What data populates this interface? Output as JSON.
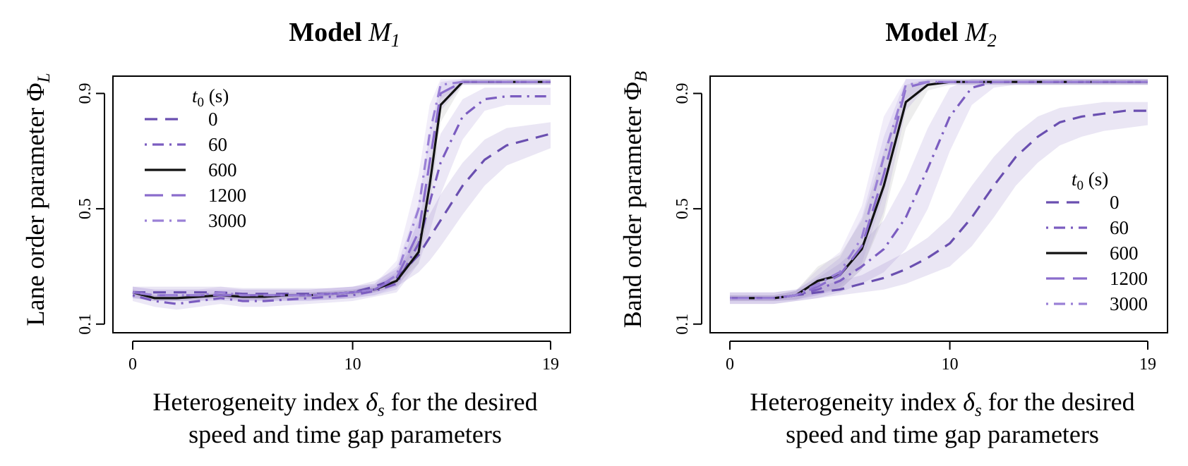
{
  "chart_data": [
    {
      "type": "line",
      "title": {
        "text": "Model ",
        "model": "M",
        "sub": "1"
      },
      "xlabel": {
        "line1_pre": "Heterogeneity index ",
        "delta": "δ",
        "delta_sub": "s",
        "line1_post": " for the desired",
        "line2": "speed and time gap parameters"
      },
      "ylabel": {
        "text": "Lane order parameter ",
        "phi": "Φ",
        "phi_sub": "L"
      },
      "xlim": [
        0,
        19
      ],
      "ylim": [
        0.07,
        0.96
      ],
      "x_ticks": [
        0,
        10,
        19
      ],
      "y_ticks": [
        0.1,
        0.5,
        0.9
      ],
      "grid": false,
      "legend": {
        "placement": "top-left",
        "title_var": "t",
        "title_sub": "0",
        "title_unit": " (s)"
      },
      "x": [
        0,
        1,
        2,
        3,
        4,
        5,
        6,
        7,
        8,
        9,
        10,
        11,
        12,
        13,
        13.5,
        14,
        15,
        16,
        17,
        18,
        19
      ],
      "series": [
        {
          "name": "0",
          "color": "#6a4fb0",
          "dash": "dashed",
          "values": [
            0.21,
            0.21,
            0.21,
            0.21,
            0.21,
            0.205,
            0.205,
            0.205,
            0.205,
            0.205,
            0.21,
            0.23,
            0.26,
            0.34,
            0.4,
            0.46,
            0.58,
            0.67,
            0.72,
            0.74,
            0.76
          ],
          "band_lo": [
            0.19,
            0.19,
            0.19,
            0.19,
            0.19,
            0.185,
            0.185,
            0.185,
            0.185,
            0.185,
            0.19,
            0.21,
            0.23,
            0.28,
            0.32,
            0.37,
            0.48,
            0.58,
            0.65,
            0.68,
            0.71
          ],
          "band_hi": [
            0.23,
            0.23,
            0.23,
            0.23,
            0.23,
            0.225,
            0.225,
            0.225,
            0.225,
            0.225,
            0.23,
            0.25,
            0.29,
            0.4,
            0.48,
            0.55,
            0.66,
            0.74,
            0.78,
            0.79,
            0.8
          ]
        },
        {
          "name": "60",
          "color": "#7b5cc0",
          "dash": "dotdash",
          "values": [
            0.2,
            0.18,
            0.17,
            0.18,
            0.19,
            0.18,
            0.18,
            0.185,
            0.19,
            0.195,
            0.2,
            0.215,
            0.24,
            0.38,
            0.52,
            0.66,
            0.82,
            0.88,
            0.89,
            0.89,
            0.89
          ],
          "band_lo": [
            0.18,
            0.16,
            0.15,
            0.16,
            0.17,
            0.16,
            0.16,
            0.165,
            0.17,
            0.175,
            0.18,
            0.195,
            0.21,
            0.31,
            0.42,
            0.55,
            0.74,
            0.84,
            0.86,
            0.86,
            0.86
          ],
          "band_hi": [
            0.22,
            0.2,
            0.19,
            0.2,
            0.21,
            0.2,
            0.2,
            0.205,
            0.21,
            0.215,
            0.22,
            0.235,
            0.28,
            0.46,
            0.62,
            0.76,
            0.88,
            0.92,
            0.92,
            0.92,
            0.92
          ]
        },
        {
          "name": "600",
          "color": "#111111",
          "dash": "solid",
          "values": [
            0.21,
            0.19,
            0.19,
            0.195,
            0.2,
            0.195,
            0.195,
            0.2,
            0.2,
            0.205,
            0.21,
            0.22,
            0.25,
            0.35,
            0.58,
            0.86,
            0.94,
            0.94,
            0.94,
            0.94,
            0.94
          ],
          "band_lo": [
            0.2,
            0.18,
            0.18,
            0.185,
            0.19,
            0.185,
            0.185,
            0.19,
            0.19,
            0.195,
            0.2,
            0.21,
            0.235,
            0.31,
            0.5,
            0.8,
            0.93,
            0.93,
            0.93,
            0.93,
            0.93
          ],
          "band_hi": [
            0.22,
            0.2,
            0.2,
            0.205,
            0.21,
            0.205,
            0.205,
            0.21,
            0.21,
            0.215,
            0.22,
            0.23,
            0.27,
            0.4,
            0.66,
            0.9,
            0.95,
            0.95,
            0.95,
            0.95,
            0.95
          ]
        },
        {
          "name": "1200",
          "color": "#8a6ccc",
          "dash": "longdash",
          "values": [
            0.21,
            0.2,
            0.2,
            0.2,
            0.2,
            0.2,
            0.2,
            0.2,
            0.2,
            0.205,
            0.21,
            0.22,
            0.26,
            0.42,
            0.66,
            0.9,
            0.94,
            0.94,
            0.94,
            0.94,
            0.94
          ],
          "band_lo": [
            0.19,
            0.18,
            0.18,
            0.18,
            0.18,
            0.18,
            0.18,
            0.18,
            0.18,
            0.185,
            0.19,
            0.2,
            0.22,
            0.34,
            0.56,
            0.84,
            0.93,
            0.93,
            0.93,
            0.93,
            0.93
          ],
          "band_hi": [
            0.23,
            0.22,
            0.22,
            0.22,
            0.22,
            0.22,
            0.22,
            0.22,
            0.22,
            0.225,
            0.23,
            0.24,
            0.3,
            0.52,
            0.76,
            0.94,
            0.95,
            0.95,
            0.95,
            0.95,
            0.95
          ]
        },
        {
          "name": "3000",
          "color": "#9a80d6",
          "dash": "dotdash",
          "values": [
            0.21,
            0.2,
            0.2,
            0.2,
            0.21,
            0.2,
            0.2,
            0.2,
            0.2,
            0.205,
            0.21,
            0.22,
            0.27,
            0.5,
            0.76,
            0.93,
            0.94,
            0.94,
            0.94,
            0.94,
            0.94
          ],
          "band_lo": [
            0.19,
            0.18,
            0.18,
            0.18,
            0.19,
            0.18,
            0.18,
            0.18,
            0.18,
            0.185,
            0.19,
            0.2,
            0.23,
            0.4,
            0.66,
            0.88,
            0.93,
            0.93,
            0.93,
            0.93,
            0.93
          ],
          "band_hi": [
            0.23,
            0.22,
            0.22,
            0.22,
            0.23,
            0.22,
            0.22,
            0.22,
            0.22,
            0.225,
            0.23,
            0.24,
            0.32,
            0.62,
            0.86,
            0.95,
            0.95,
            0.95,
            0.95,
            0.95,
            0.95
          ]
        }
      ]
    },
    {
      "type": "line",
      "title": {
        "text": "Model ",
        "model": "M",
        "sub": "2"
      },
      "xlabel": {
        "line1_pre": "Heterogeneity index ",
        "delta": "δ",
        "delta_sub": "s",
        "line1_post": " for the desired",
        "line2": "speed and time gap parameters"
      },
      "ylabel": {
        "text": "Band order parameter ",
        "phi": "Φ",
        "phi_sub": "B"
      },
      "xlim": [
        0,
        19
      ],
      "ylim": [
        0.07,
        0.96
      ],
      "x_ticks": [
        0,
        10,
        19
      ],
      "y_ticks": [
        0.1,
        0.5,
        0.9
      ],
      "grid": false,
      "legend": {
        "placement": "right",
        "title_var": "t",
        "title_sub": "0",
        "title_unit": " (s)"
      },
      "x": [
        0,
        1,
        2,
        3,
        4,
        5,
        6,
        7,
        8,
        9,
        10,
        11,
        12,
        13,
        14,
        15,
        16,
        17,
        18,
        19
      ],
      "series": [
        {
          "name": "0",
          "color": "#6a4fb0",
          "dash": "dashed",
          "values": [
            0.19,
            0.19,
            0.19,
            0.2,
            0.21,
            0.22,
            0.24,
            0.26,
            0.29,
            0.33,
            0.38,
            0.47,
            0.58,
            0.68,
            0.75,
            0.8,
            0.82,
            0.83,
            0.84,
            0.84
          ],
          "band_lo": [
            0.17,
            0.17,
            0.17,
            0.18,
            0.19,
            0.2,
            0.21,
            0.22,
            0.24,
            0.27,
            0.3,
            0.37,
            0.47,
            0.58,
            0.66,
            0.72,
            0.75,
            0.77,
            0.78,
            0.79
          ],
          "band_hi": [
            0.21,
            0.21,
            0.21,
            0.22,
            0.23,
            0.25,
            0.27,
            0.31,
            0.35,
            0.4,
            0.47,
            0.58,
            0.68,
            0.76,
            0.82,
            0.85,
            0.86,
            0.87,
            0.87,
            0.87
          ]
        },
        {
          "name": "60",
          "color": "#7b5cc0",
          "dash": "dotdash",
          "values": [
            0.19,
            0.19,
            0.19,
            0.2,
            0.22,
            0.25,
            0.3,
            0.36,
            0.47,
            0.64,
            0.82,
            0.92,
            0.94,
            0.94,
            0.94,
            0.94,
            0.94,
            0.94,
            0.94,
            0.94
          ],
          "band_lo": [
            0.17,
            0.17,
            0.17,
            0.18,
            0.19,
            0.21,
            0.24,
            0.28,
            0.36,
            0.5,
            0.7,
            0.86,
            0.92,
            0.93,
            0.93,
            0.93,
            0.93,
            0.93,
            0.93,
            0.93
          ],
          "band_hi": [
            0.21,
            0.21,
            0.21,
            0.22,
            0.26,
            0.31,
            0.38,
            0.46,
            0.6,
            0.78,
            0.92,
            0.95,
            0.95,
            0.95,
            0.95,
            0.95,
            0.95,
            0.95,
            0.95,
            0.95
          ]
        },
        {
          "name": "600",
          "color": "#111111",
          "dash": "solid",
          "values": [
            0.19,
            0.19,
            0.19,
            0.2,
            0.25,
            0.27,
            0.36,
            0.58,
            0.87,
            0.93,
            0.94,
            0.94,
            0.94,
            0.94,
            0.94,
            0.94,
            0.94,
            0.94,
            0.94,
            0.94
          ],
          "band_lo": [
            0.18,
            0.18,
            0.18,
            0.185,
            0.21,
            0.22,
            0.29,
            0.47,
            0.78,
            0.91,
            0.93,
            0.93,
            0.93,
            0.93,
            0.93,
            0.93,
            0.93,
            0.93,
            0.93,
            0.93
          ],
          "band_hi": [
            0.2,
            0.2,
            0.2,
            0.215,
            0.3,
            0.34,
            0.46,
            0.7,
            0.93,
            0.95,
            0.95,
            0.95,
            0.95,
            0.95,
            0.95,
            0.95,
            0.95,
            0.95,
            0.95,
            0.95
          ]
        },
        {
          "name": "1200",
          "color": "#8a6ccc",
          "dash": "longdash",
          "values": [
            0.19,
            0.19,
            0.19,
            0.2,
            0.23,
            0.27,
            0.37,
            0.62,
            0.92,
            0.94,
            0.94,
            0.94,
            0.94,
            0.94,
            0.94,
            0.94,
            0.94,
            0.94,
            0.94,
            0.94
          ],
          "band_lo": [
            0.18,
            0.18,
            0.18,
            0.185,
            0.2,
            0.22,
            0.29,
            0.49,
            0.84,
            0.93,
            0.93,
            0.93,
            0.93,
            0.93,
            0.93,
            0.93,
            0.93,
            0.93,
            0.93,
            0.93
          ],
          "band_hi": [
            0.2,
            0.2,
            0.2,
            0.215,
            0.27,
            0.33,
            0.47,
            0.75,
            0.95,
            0.95,
            0.95,
            0.95,
            0.95,
            0.95,
            0.95,
            0.95,
            0.95,
            0.95,
            0.95,
            0.95
          ]
        },
        {
          "name": "3000",
          "color": "#9a80d6",
          "dash": "dotdash",
          "values": [
            0.19,
            0.19,
            0.19,
            0.2,
            0.24,
            0.28,
            0.4,
            0.68,
            0.93,
            0.94,
            0.94,
            0.94,
            0.94,
            0.94,
            0.94,
            0.94,
            0.94,
            0.94,
            0.94,
            0.94
          ],
          "band_lo": [
            0.18,
            0.18,
            0.18,
            0.185,
            0.2,
            0.23,
            0.31,
            0.55,
            0.88,
            0.93,
            0.93,
            0.93,
            0.93,
            0.93,
            0.93,
            0.93,
            0.93,
            0.93,
            0.93,
            0.93
          ],
          "band_hi": [
            0.2,
            0.2,
            0.2,
            0.215,
            0.29,
            0.35,
            0.51,
            0.82,
            0.95,
            0.95,
            0.95,
            0.95,
            0.95,
            0.95,
            0.95,
            0.95,
            0.95,
            0.95,
            0.95,
            0.95
          ]
        }
      ]
    }
  ]
}
